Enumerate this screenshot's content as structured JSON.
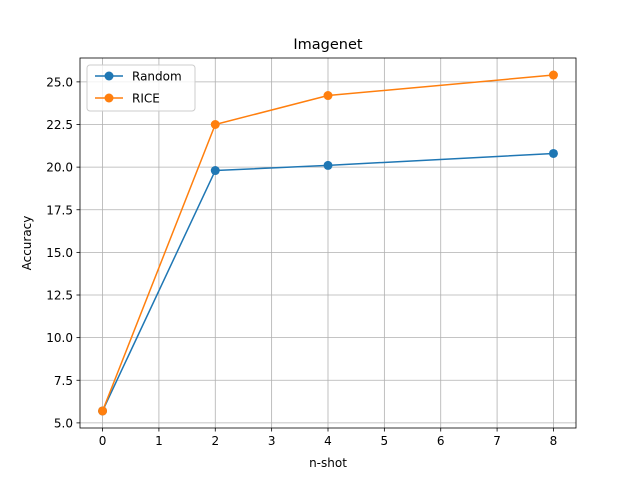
{
  "chart_data": {
    "type": "line",
    "title": "Imagenet",
    "xlabel": "n-shot",
    "ylabel": "Accuracy",
    "x": [
      0,
      2,
      4,
      8
    ],
    "series": [
      {
        "name": "Random",
        "values": [
          5.7,
          19.8,
          20.1,
          20.8
        ],
        "color": "#1f77b4"
      },
      {
        "name": "RICE",
        "values": [
          5.7,
          22.5,
          24.2,
          25.4
        ],
        "color": "#ff7f0e"
      }
    ],
    "xlim": [
      -0.4,
      8.4
    ],
    "ylim": [
      4.7,
      26.4
    ],
    "xticks": [
      0,
      1,
      2,
      3,
      4,
      5,
      6,
      7,
      8
    ],
    "xtick_labels": [
      "0",
      "1",
      "2",
      "3",
      "4",
      "5",
      "6",
      "7",
      "8"
    ],
    "yticks": [
      5.0,
      7.5,
      10.0,
      12.5,
      15.0,
      17.5,
      20.0,
      22.5,
      25.0
    ],
    "ytick_labels": [
      "5.0",
      "7.5",
      "10.0",
      "12.5",
      "15.0",
      "17.5",
      "20.0",
      "22.5",
      "25.0"
    ],
    "grid": true,
    "legend_position": "top-left"
  }
}
